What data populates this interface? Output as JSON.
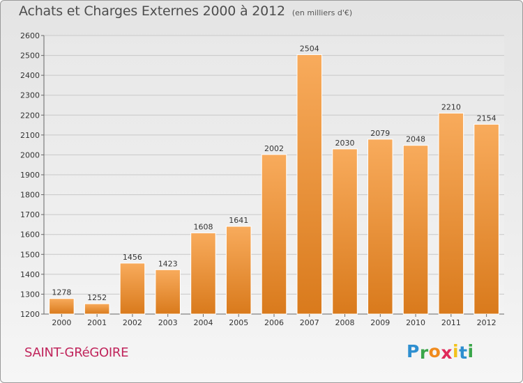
{
  "header": {
    "title": "Achats et Charges Externes 2000 à 2012",
    "subtitle": "(en milliers d'€)"
  },
  "footer": {
    "commune": "SAINT-GRéGOIRE",
    "logo": {
      "letters": [
        "P",
        "r",
        "o",
        "x",
        "i",
        "t",
        "i"
      ],
      "colors": [
        "#2e8fd0",
        "#3aa64a",
        "#f08a1c",
        "#e02a5a",
        "#f2c21b",
        "#2e8fd0",
        "#3aa64a"
      ]
    }
  },
  "colors": {
    "bar_top": "#f8ab5c",
    "bar_bottom": "#d97a1c",
    "grid": "#c8c8c8",
    "axis_text": "#333333"
  },
  "chart_data": {
    "type": "bar",
    "categories": [
      "2000",
      "2001",
      "2002",
      "2003",
      "2004",
      "2005",
      "2006",
      "2007",
      "2008",
      "2009",
      "2010",
      "2011",
      "2012"
    ],
    "values": [
      1278,
      1252,
      1456,
      1423,
      1608,
      1641,
      2002,
      2504,
      2030,
      2079,
      2048,
      2210,
      2154
    ],
    "ylim": [
      1200,
      2600
    ],
    "yticks": [
      1200,
      1300,
      1400,
      1500,
      1600,
      1700,
      1800,
      1900,
      2000,
      2100,
      2200,
      2300,
      2400,
      2500,
      2600
    ],
    "grid": true,
    "legend": "none"
  }
}
